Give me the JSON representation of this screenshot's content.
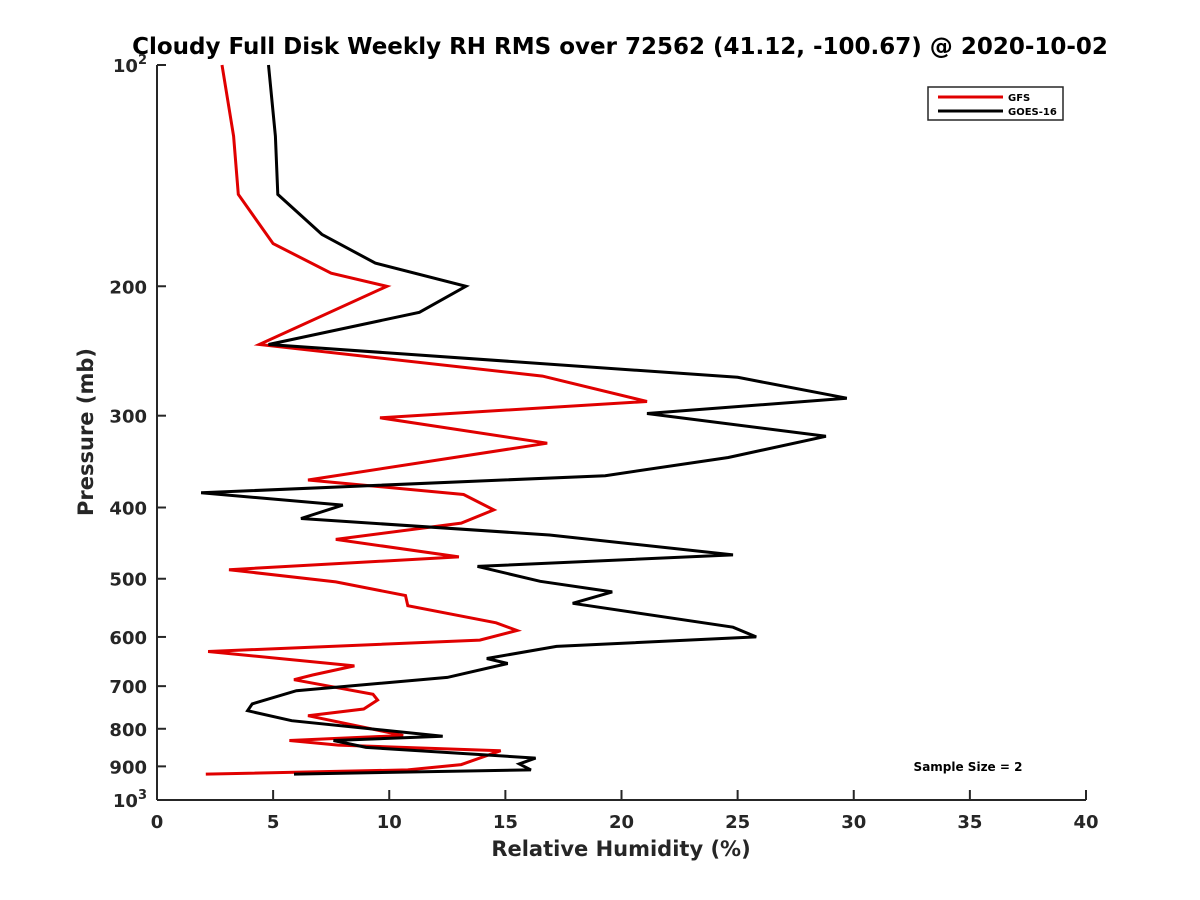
{
  "chart_data": {
    "type": "line",
    "title": "Cloudy Full Disk Weekly RH RMS over 72562 (41.12, -100.67) @ 2020-10-02",
    "xlabel": "Relative Humidity (%)",
    "ylabel": "Pressure (mb)",
    "xlim": [
      0,
      40
    ],
    "ylim": [
      100,
      1000
    ],
    "y_scale": "log",
    "y_reversed": true,
    "x_ticks": [
      0,
      5,
      10,
      15,
      20,
      25,
      30,
      35,
      40
    ],
    "y_ticks": [
      {
        "value": 100,
        "label": "10",
        "exp": "2"
      },
      {
        "value": 200,
        "label": "200"
      },
      {
        "value": 300,
        "label": "300"
      },
      {
        "value": 400,
        "label": "400"
      },
      {
        "value": 500,
        "label": "500"
      },
      {
        "value": 600,
        "label": "600"
      },
      {
        "value": 700,
        "label": "700"
      },
      {
        "value": 800,
        "label": "800"
      },
      {
        "value": 900,
        "label": "900"
      },
      {
        "value": 1000,
        "label": "10",
        "exp": "3"
      }
    ],
    "grid": false,
    "legend_position": "top-right",
    "series": [
      {
        "name": "GFS",
        "color": "#e00000",
        "points": [
          [
            2.8,
            100
          ],
          [
            3.3,
            125
          ],
          [
            3.5,
            150
          ],
          [
            5.0,
            175
          ],
          [
            7.5,
            192
          ],
          [
            9.9,
            200
          ],
          [
            4.4,
            240
          ],
          [
            16.6,
            265
          ],
          [
            21.1,
            287
          ],
          [
            9.6,
            302
          ],
          [
            16.8,
            327
          ],
          [
            6.5,
            367
          ],
          [
            13.2,
            384
          ],
          [
            14.5,
            403
          ],
          [
            13.1,
            420
          ],
          [
            7.7,
            442
          ],
          [
            13.0,
            467
          ],
          [
            3.1,
            486
          ],
          [
            7.7,
            505
          ],
          [
            10.7,
            527
          ],
          [
            10.8,
            544
          ],
          [
            14.6,
            574
          ],
          [
            15.5,
            588
          ],
          [
            13.9,
            606
          ],
          [
            2.2,
            628
          ],
          [
            8.5,
            657
          ],
          [
            6.7,
            676
          ],
          [
            5.9,
            686
          ],
          [
            9.3,
            718
          ],
          [
            9.5,
            731
          ],
          [
            8.9,
            752
          ],
          [
            6.5,
            768
          ],
          [
            10.6,
            817
          ],
          [
            5.7,
            830
          ],
          [
            7.8,
            842
          ],
          [
            14.8,
            857
          ],
          [
            13.1,
            895
          ],
          [
            10.8,
            910
          ],
          [
            2.1,
            922
          ]
        ]
      },
      {
        "name": "GOES-16",
        "color": "#000000",
        "points": [
          [
            4.8,
            100
          ],
          [
            5.1,
            125
          ],
          [
            5.2,
            150
          ],
          [
            7.1,
            170
          ],
          [
            9.4,
            186
          ],
          [
            13.3,
            200
          ],
          [
            11.3,
            217
          ],
          [
            4.8,
            240
          ],
          [
            25.0,
            266
          ],
          [
            29.7,
            284
          ],
          [
            21.1,
            298
          ],
          [
            28.8,
            320
          ],
          [
            24.6,
            342
          ],
          [
            19.3,
            362
          ],
          [
            1.9,
            382
          ],
          [
            8.0,
            397
          ],
          [
            6.2,
            414
          ],
          [
            16.9,
            436
          ],
          [
            24.8,
            464
          ],
          [
            13.8,
            481
          ],
          [
            16.5,
            504
          ],
          [
            19.6,
            521
          ],
          [
            17.9,
            540
          ],
          [
            24.8,
            582
          ],
          [
            25.8,
            600
          ],
          [
            17.2,
            618
          ],
          [
            14.2,
            642
          ],
          [
            15.1,
            652
          ],
          [
            12.5,
            681
          ],
          [
            6.0,
            710
          ],
          [
            4.1,
            740
          ],
          [
            3.9,
            756
          ],
          [
            5.8,
            780
          ],
          [
            12.3,
            819
          ],
          [
            7.6,
            830
          ],
          [
            9.0,
            848
          ],
          [
            16.3,
            877
          ],
          [
            15.6,
            893
          ],
          [
            16.1,
            910
          ],
          [
            5.9,
            922
          ]
        ]
      }
    ],
    "annotation": "Sample Size = 2"
  }
}
